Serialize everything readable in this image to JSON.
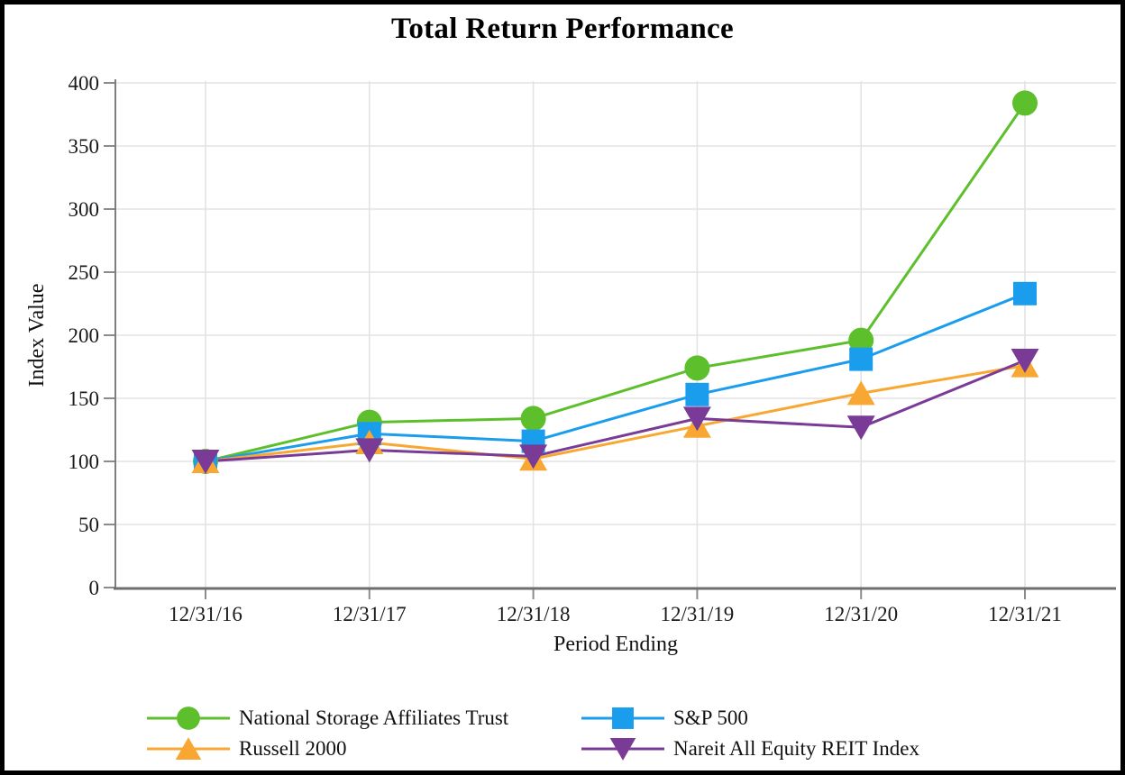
{
  "chart_data": {
    "type": "line",
    "title": "Total Return Performance",
    "xlabel": "Period Ending",
    "ylabel": "Index Value",
    "ylim": [
      0,
      400
    ],
    "y_tick_step": 50,
    "grid": true,
    "legend_position": "bottom",
    "categories": [
      "12/31/16",
      "12/31/17",
      "12/31/18",
      "12/31/19",
      "12/31/20",
      "12/31/21"
    ],
    "series": [
      {
        "name": "National Storage Affiliates Trust",
        "marker": "circle",
        "color": "#5CBF2B",
        "values": [
          100,
          131,
          134,
          174,
          196,
          384
        ]
      },
      {
        "name": "S&P 500",
        "marker": "square",
        "color": "#1B9DEE",
        "values": [
          100,
          122,
          116,
          153,
          181,
          233
        ]
      },
      {
        "name": "Russell 2000",
        "marker": "triangle-up",
        "color": "#F8A832",
        "values": [
          100,
          115,
          102,
          128,
          154,
          176
        ]
      },
      {
        "name": "Nareit All Equity REIT Index",
        "marker": "triangle-down",
        "color": "#7A3B96",
        "values": [
          100,
          109,
          104,
          134,
          127,
          180
        ]
      }
    ],
    "style": {
      "grid_color": "#E3E3E3",
      "axis_color": "#7D7D7D",
      "tick_color": "#8C8C8C",
      "text_color": "#1a1a1a"
    }
  }
}
